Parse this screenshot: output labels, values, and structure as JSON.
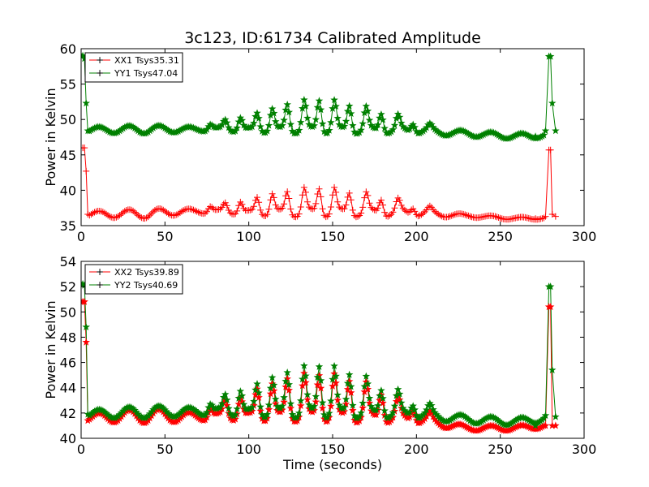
{
  "chart_data": {
    "type": "line",
    "title": "3c123, ID:61734 Calibrated Amplitude",
    "xlabel": "Time (seconds)",
    "panels": [
      {
        "ylabel": "Power in Kelvin",
        "xlim": [
          0,
          300
        ],
        "ylim": [
          35,
          60
        ],
        "xticks": [
          0,
          50,
          100,
          150,
          200,
          250,
          300
        ],
        "yticks": [
          35,
          40,
          45,
          50,
          55,
          60
        ],
        "legend": "top-left",
        "series": [
          {
            "name": "XX1 Tsys35.31",
            "color": "#ff0000",
            "marker": "+",
            "spikes": [
              [
                0,
                46
              ],
              [
                1,
                46
              ],
              [
                2,
                46
              ],
              [
                3,
                42.7
              ],
              [
                4,
                36.6
              ]
            ],
            "tail_spike": [
              [
                271,
                36
              ],
              [
                277,
                36.3
              ],
              [
                279,
                45.7
              ],
              [
                280,
                45.7
              ],
              [
                281,
                36.6
              ],
              [
                283,
                36.3
              ]
            ],
            "t_start": 4,
            "t_end": 277,
            "baseline": [
              [
                4,
                36.6
              ],
              [
                40,
                36.7
              ],
              [
                60,
                37.0
              ],
              [
                80,
                37.0
              ],
              [
                100,
                36.8
              ],
              [
                140,
                36.8
              ],
              [
                200,
                36.8
              ],
              [
                230,
                36.4
              ],
              [
                260,
                36.0
              ],
              [
                277,
                36.1
              ]
            ],
            "wave": [
              [
                4,
                0.4
              ],
              [
                40,
                0.7
              ],
              [
                70,
                0.3
              ],
              [
                90,
                0.3
              ],
              [
                130,
                0.6
              ],
              [
                200,
                0.6
              ],
              [
                230,
                0.2
              ],
              [
                260,
                0.2
              ],
              [
                277,
                0.2
              ]
            ],
            "bursts": [
              [
                77,
                0.8
              ],
              [
                86,
                1.2
              ],
              [
                95,
                1.6
              ],
              [
                105,
                2.2
              ],
              [
                114,
                2.7
              ],
              [
                123,
                3.0
              ],
              [
                133,
                3.4
              ],
              [
                142,
                3.6
              ],
              [
                151,
                3.4
              ],
              [
                160,
                3.0
              ],
              [
                170,
                2.6
              ],
              [
                179,
                2.2
              ],
              [
                189,
                1.6
              ],
              [
                198,
                1.1
              ],
              [
                208,
                0.6
              ]
            ]
          },
          {
            "name": "YY1 Tsys47.04",
            "color": "#008000",
            "marker": "*",
            "spikes": [
              [
                0,
                59
              ],
              [
                1,
                59
              ],
              [
                2,
                58.6
              ],
              [
                3,
                52.3
              ],
              [
                4,
                48.4
              ]
            ],
            "tail_spike": [
              [
                271,
                47.6
              ],
              [
                277,
                48.4
              ],
              [
                279,
                58.9
              ],
              [
                280,
                58.9
              ],
              [
                281,
                52.3
              ],
              [
                283,
                48.4
              ]
            ],
            "t_start": 4,
            "t_end": 277,
            "baseline": [
              [
                4,
                48.5
              ],
              [
                40,
                48.6
              ],
              [
                60,
                48.6
              ],
              [
                80,
                48.6
              ],
              [
                100,
                48.5
              ],
              [
                140,
                48.5
              ],
              [
                200,
                48.4
              ],
              [
                230,
                48.0
              ],
              [
                260,
                47.6
              ],
              [
                277,
                47.8
              ]
            ],
            "wave": [
              [
                4,
                0.4
              ],
              [
                40,
                0.6
              ],
              [
                70,
                0.3
              ],
              [
                90,
                0.3
              ],
              [
                130,
                0.5
              ],
              [
                200,
                0.5
              ],
              [
                230,
                0.4
              ],
              [
                260,
                0.4
              ],
              [
                277,
                0.4
              ]
            ],
            "bursts": [
              [
                77,
                0.8
              ],
              [
                86,
                1.3
              ],
              [
                95,
                1.8
              ],
              [
                105,
                2.4
              ],
              [
                114,
                3.0
              ],
              [
                123,
                3.6
              ],
              [
                133,
                4.1
              ],
              [
                142,
                4.3
              ],
              [
                151,
                4.1
              ],
              [
                160,
                3.6
              ],
              [
                170,
                3.1
              ],
              [
                179,
                2.6
              ],
              [
                189,
                1.9
              ],
              [
                198,
                1.3
              ],
              [
                208,
                0.7
              ]
            ]
          }
        ]
      },
      {
        "ylabel": "Power in Kelvin",
        "xlim": [
          0,
          300
        ],
        "ylim": [
          40,
          54
        ],
        "xticks": [
          0,
          50,
          100,
          150,
          200,
          250,
          300
        ],
        "yticks": [
          40,
          42,
          44,
          46,
          48,
          50,
          52,
          54
        ],
        "legend": "top-left",
        "series": [
          {
            "name": "XX2 Tsys39.89",
            "color": "#ff0000",
            "marker": "*",
            "spikes": [
              [
                0,
                50.8
              ],
              [
                1,
                50.8
              ],
              [
                2,
                50.8
              ],
              [
                3,
                47.6
              ],
              [
                4,
                41.4
              ]
            ],
            "tail_spike": [
              [
                271,
                41.0
              ],
              [
                277,
                41.0
              ],
              [
                279,
                50.4
              ],
              [
                280,
                50.4
              ],
              [
                281,
                41.0
              ],
              [
                283,
                41.0
              ]
            ],
            "t_start": 4,
            "t_end": 277,
            "baseline": [
              [
                4,
                41.6
              ],
              [
                40,
                41.8
              ],
              [
                60,
                41.7
              ],
              [
                80,
                41.7
              ],
              [
                100,
                41.7
              ],
              [
                140,
                41.7
              ],
              [
                200,
                41.5
              ],
              [
                230,
                40.8
              ],
              [
                260,
                40.8
              ],
              [
                277,
                41.0
              ]
            ],
            "wave": [
              [
                4,
                0.3
              ],
              [
                40,
                0.6
              ],
              [
                70,
                0.3
              ],
              [
                90,
                0.3
              ],
              [
                130,
                0.4
              ],
              [
                200,
                0.4
              ],
              [
                230,
                0.2
              ],
              [
                260,
                0.2
              ],
              [
                277,
                0.2
              ]
            ],
            "bursts": [
              [
                77,
                0.7
              ],
              [
                86,
                1.2
              ],
              [
                95,
                1.6
              ],
              [
                105,
                2.2
              ],
              [
                114,
                2.6
              ],
              [
                123,
                3.0
              ],
              [
                133,
                3.3
              ],
              [
                142,
                3.4
              ],
              [
                151,
                3.3
              ],
              [
                160,
                3.0
              ],
              [
                170,
                2.6
              ],
              [
                179,
                2.1
              ],
              [
                189,
                1.5
              ],
              [
                198,
                1.0
              ],
              [
                208,
                0.5
              ]
            ]
          },
          {
            "name": "YY2 Tsys40.69",
            "color": "#008000",
            "marker": "*",
            "spikes": [
              [
                0,
                52.2
              ],
              [
                1,
                52.2
              ],
              [
                2,
                52.1
              ],
              [
                3,
                48.8
              ],
              [
                4,
                41.9
              ]
            ],
            "tail_spike": [
              [
                271,
                41.0
              ],
              [
                277,
                41.8
              ],
              [
                279,
                52.0
              ],
              [
                280,
                52.0
              ],
              [
                281,
                45.4
              ],
              [
                283,
                41.7
              ]
            ],
            "t_start": 4,
            "t_end": 277,
            "baseline": [
              [
                4,
                41.9
              ],
              [
                40,
                42.1
              ],
              [
                60,
                42.1
              ],
              [
                80,
                42.1
              ],
              [
                100,
                42.0
              ],
              [
                140,
                42.0
              ],
              [
                200,
                41.9
              ],
              [
                230,
                41.5
              ],
              [
                260,
                41.3
              ],
              [
                277,
                41.6
              ]
            ],
            "wave": [
              [
                4,
                0.3
              ],
              [
                40,
                0.5
              ],
              [
                70,
                0.3
              ],
              [
                90,
                0.3
              ],
              [
                130,
                0.4
              ],
              [
                200,
                0.4
              ],
              [
                230,
                0.3
              ],
              [
                260,
                0.3
              ],
              [
                277,
                0.3
              ]
            ],
            "bursts": [
              [
                77,
                0.7
              ],
              [
                86,
                1.3
              ],
              [
                95,
                1.8
              ],
              [
                105,
                2.3
              ],
              [
                114,
                2.8
              ],
              [
                123,
                3.2
              ],
              [
                133,
                3.6
              ],
              [
                142,
                3.8
              ],
              [
                151,
                3.6
              ],
              [
                160,
                3.2
              ],
              [
                170,
                2.7
              ],
              [
                179,
                2.1
              ],
              [
                189,
                1.6
              ],
              [
                198,
                1.0
              ],
              [
                208,
                0.6
              ]
            ]
          }
        ]
      }
    ]
  }
}
